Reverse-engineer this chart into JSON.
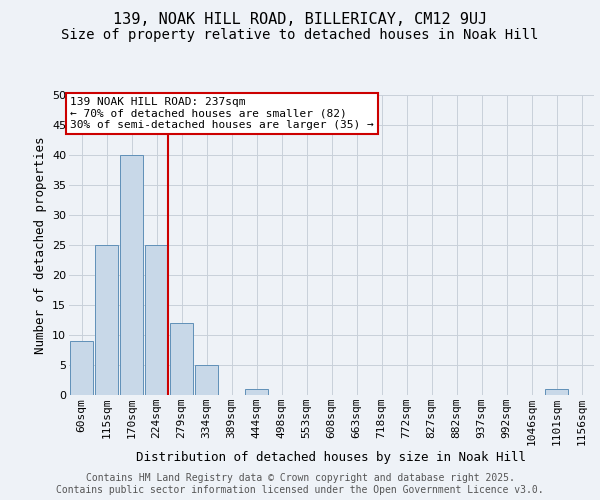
{
  "title": "139, NOAK HILL ROAD, BILLERICAY, CM12 9UJ",
  "subtitle": "Size of property relative to detached houses in Noak Hill",
  "xlabel": "Distribution of detached houses by size in Noak Hill",
  "ylabel": "Number of detached properties",
  "bins": [
    "60sqm",
    "115sqm",
    "170sqm",
    "224sqm",
    "279sqm",
    "334sqm",
    "389sqm",
    "444sqm",
    "498sqm",
    "553sqm",
    "608sqm",
    "663sqm",
    "718sqm",
    "772sqm",
    "827sqm",
    "882sqm",
    "937sqm",
    "992sqm",
    "1046sqm",
    "1101sqm",
    "1156sqm"
  ],
  "values": [
    9,
    25,
    40,
    25,
    12,
    5,
    0,
    1,
    0,
    0,
    0,
    0,
    0,
    0,
    0,
    0,
    0,
    0,
    0,
    1,
    0
  ],
  "bar_color": "#c8d8e8",
  "bar_edge_color": "#6090b8",
  "red_line_x": 3.45,
  "red_line_color": "#cc0000",
  "ylim": [
    0,
    50
  ],
  "yticks": [
    0,
    5,
    10,
    15,
    20,
    25,
    30,
    35,
    40,
    45,
    50
  ],
  "annotation_text": "139 NOAK HILL ROAD: 237sqm\n← 70% of detached houses are smaller (82)\n30% of semi-detached houses are larger (35) →",
  "annotation_box_facecolor": "#ffffff",
  "annotation_box_edgecolor": "#cc0000",
  "background_color": "#eef2f7",
  "grid_color": "#c8d0da",
  "title_fontsize": 11,
  "subtitle_fontsize": 10,
  "axis_label_fontsize": 9,
  "tick_fontsize": 8,
  "annotation_fontsize": 8,
  "footer_text": "Contains HM Land Registry data © Crown copyright and database right 2025.\nContains public sector information licensed under the Open Government Licence v3.0.",
  "footer_fontsize": 7
}
